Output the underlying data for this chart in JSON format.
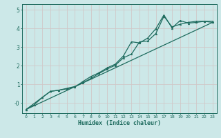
{
  "xlabel": "Humidex (Indice chaleur)",
  "bg_color": "#cce8e8",
  "grid_color": "#b8d8d8",
  "line_color": "#1e6b5e",
  "xlim": [
    -0.5,
    23.5
  ],
  "ylim": [
    -0.55,
    5.3
  ],
  "xticks": [
    0,
    1,
    2,
    3,
    4,
    5,
    6,
    7,
    8,
    9,
    10,
    11,
    12,
    13,
    14,
    15,
    16,
    17,
    18,
    19,
    20,
    21,
    22,
    23
  ],
  "yticks": [
    0,
    1,
    2,
    3,
    4,
    5
  ],
  "ytick_labels": [
    "-0",
    "1",
    "2",
    "3",
    "4",
    "5"
  ],
  "line1_x": [
    0,
    1,
    2,
    3,
    4,
    5,
    6,
    7,
    8,
    9,
    10,
    11,
    12,
    13,
    14,
    15,
    16,
    17,
    18,
    19,
    20,
    21,
    22,
    23
  ],
  "line1_y": [
    -0.35,
    -0.1,
    0.3,
    0.62,
    0.68,
    0.75,
    0.85,
    1.15,
    1.42,
    1.62,
    1.88,
    2.08,
    2.52,
    3.28,
    3.22,
    3.48,
    3.98,
    4.72,
    4.02,
    4.42,
    4.28,
    4.32,
    4.38,
    4.32
  ],
  "line2_x": [
    0,
    2,
    3,
    4,
    5,
    6,
    7,
    8,
    9,
    10,
    11,
    12,
    13,
    14,
    15,
    16,
    17,
    18,
    19,
    20,
    21,
    22,
    23
  ],
  "line2_y": [
    -0.35,
    0.3,
    0.62,
    0.68,
    0.78,
    0.88,
    1.08,
    1.32,
    1.58,
    1.82,
    2.02,
    2.42,
    2.62,
    3.28,
    3.32,
    3.72,
    4.65,
    4.08,
    4.22,
    4.32,
    4.38,
    4.38,
    4.38
  ],
  "line3_x": [
    0,
    23
  ],
  "line3_y": [
    -0.35,
    4.32
  ]
}
